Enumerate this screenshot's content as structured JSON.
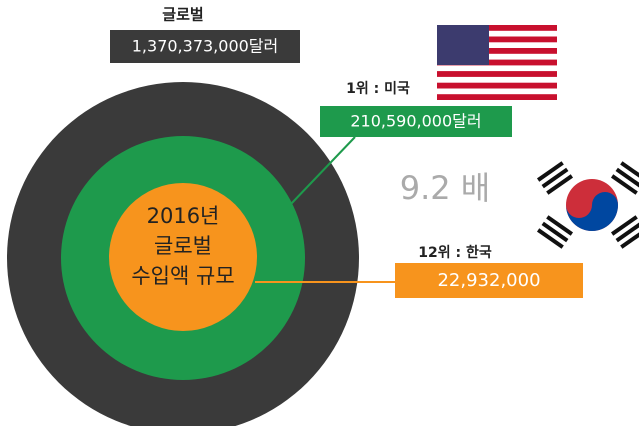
{
  "global": {
    "title": "글로벌",
    "amount": "1,370,373,000달러"
  },
  "usa": {
    "rank": "1위 : 미국",
    "amount": "210,590,000달러"
  },
  "korea": {
    "rank": "12위 : 한국",
    "amount": "22,932,000"
  },
  "ratio": "9.2 배",
  "center": {
    "line1": "2016년",
    "line2": "글로벌",
    "line3": "수입액 규모"
  }
}
